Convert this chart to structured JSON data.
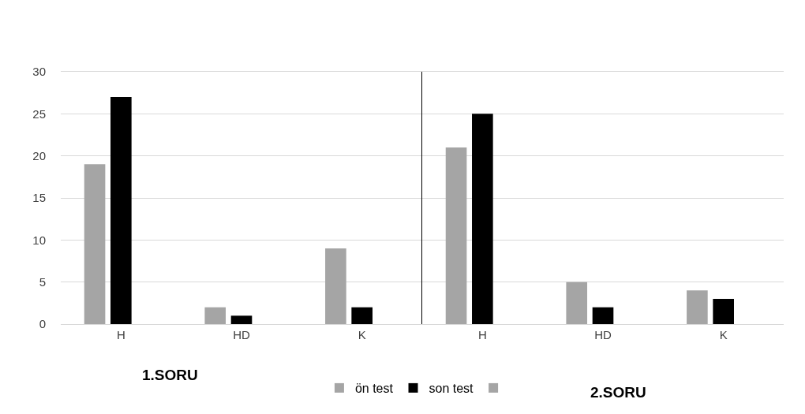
{
  "chart_data": [
    {
      "type": "bar",
      "xlabel": "1.SORU",
      "categories": [
        "H",
        "HD",
        "K"
      ],
      "series": [
        {
          "name": "ön test",
          "color": "#a5a5a5",
          "values": [
            19,
            2,
            9
          ]
        },
        {
          "name": "son test",
          "color": "#000000",
          "values": [
            27,
            1,
            2
          ]
        },
        {
          "color": "#a5a5a5",
          "values": [
            null,
            null,
            null
          ]
        }
      ],
      "ylim": [
        0,
        30
      ],
      "yticks": [
        0,
        5,
        10,
        15,
        20,
        25,
        30
      ],
      "grid": "y",
      "legend": "bottom"
    },
    {
      "type": "bar",
      "xlabel": "2.SORU",
      "categories": [
        "H",
        "HD",
        "K"
      ],
      "series": [
        {
          "color": "#a5a5a5",
          "values": [
            21,
            5,
            4
          ]
        },
        {
          "color": "#000000",
          "values": [
            25,
            2,
            3
          ]
        },
        {
          "color": "#a5a5a5",
          "values": [
            null,
            null,
            null
          ]
        }
      ],
      "ylim": [
        0,
        30
      ],
      "yticks": [
        0,
        5,
        10,
        15,
        20,
        25,
        30
      ],
      "grid": "y",
      "tick_labels": "x"
    }
  ]
}
